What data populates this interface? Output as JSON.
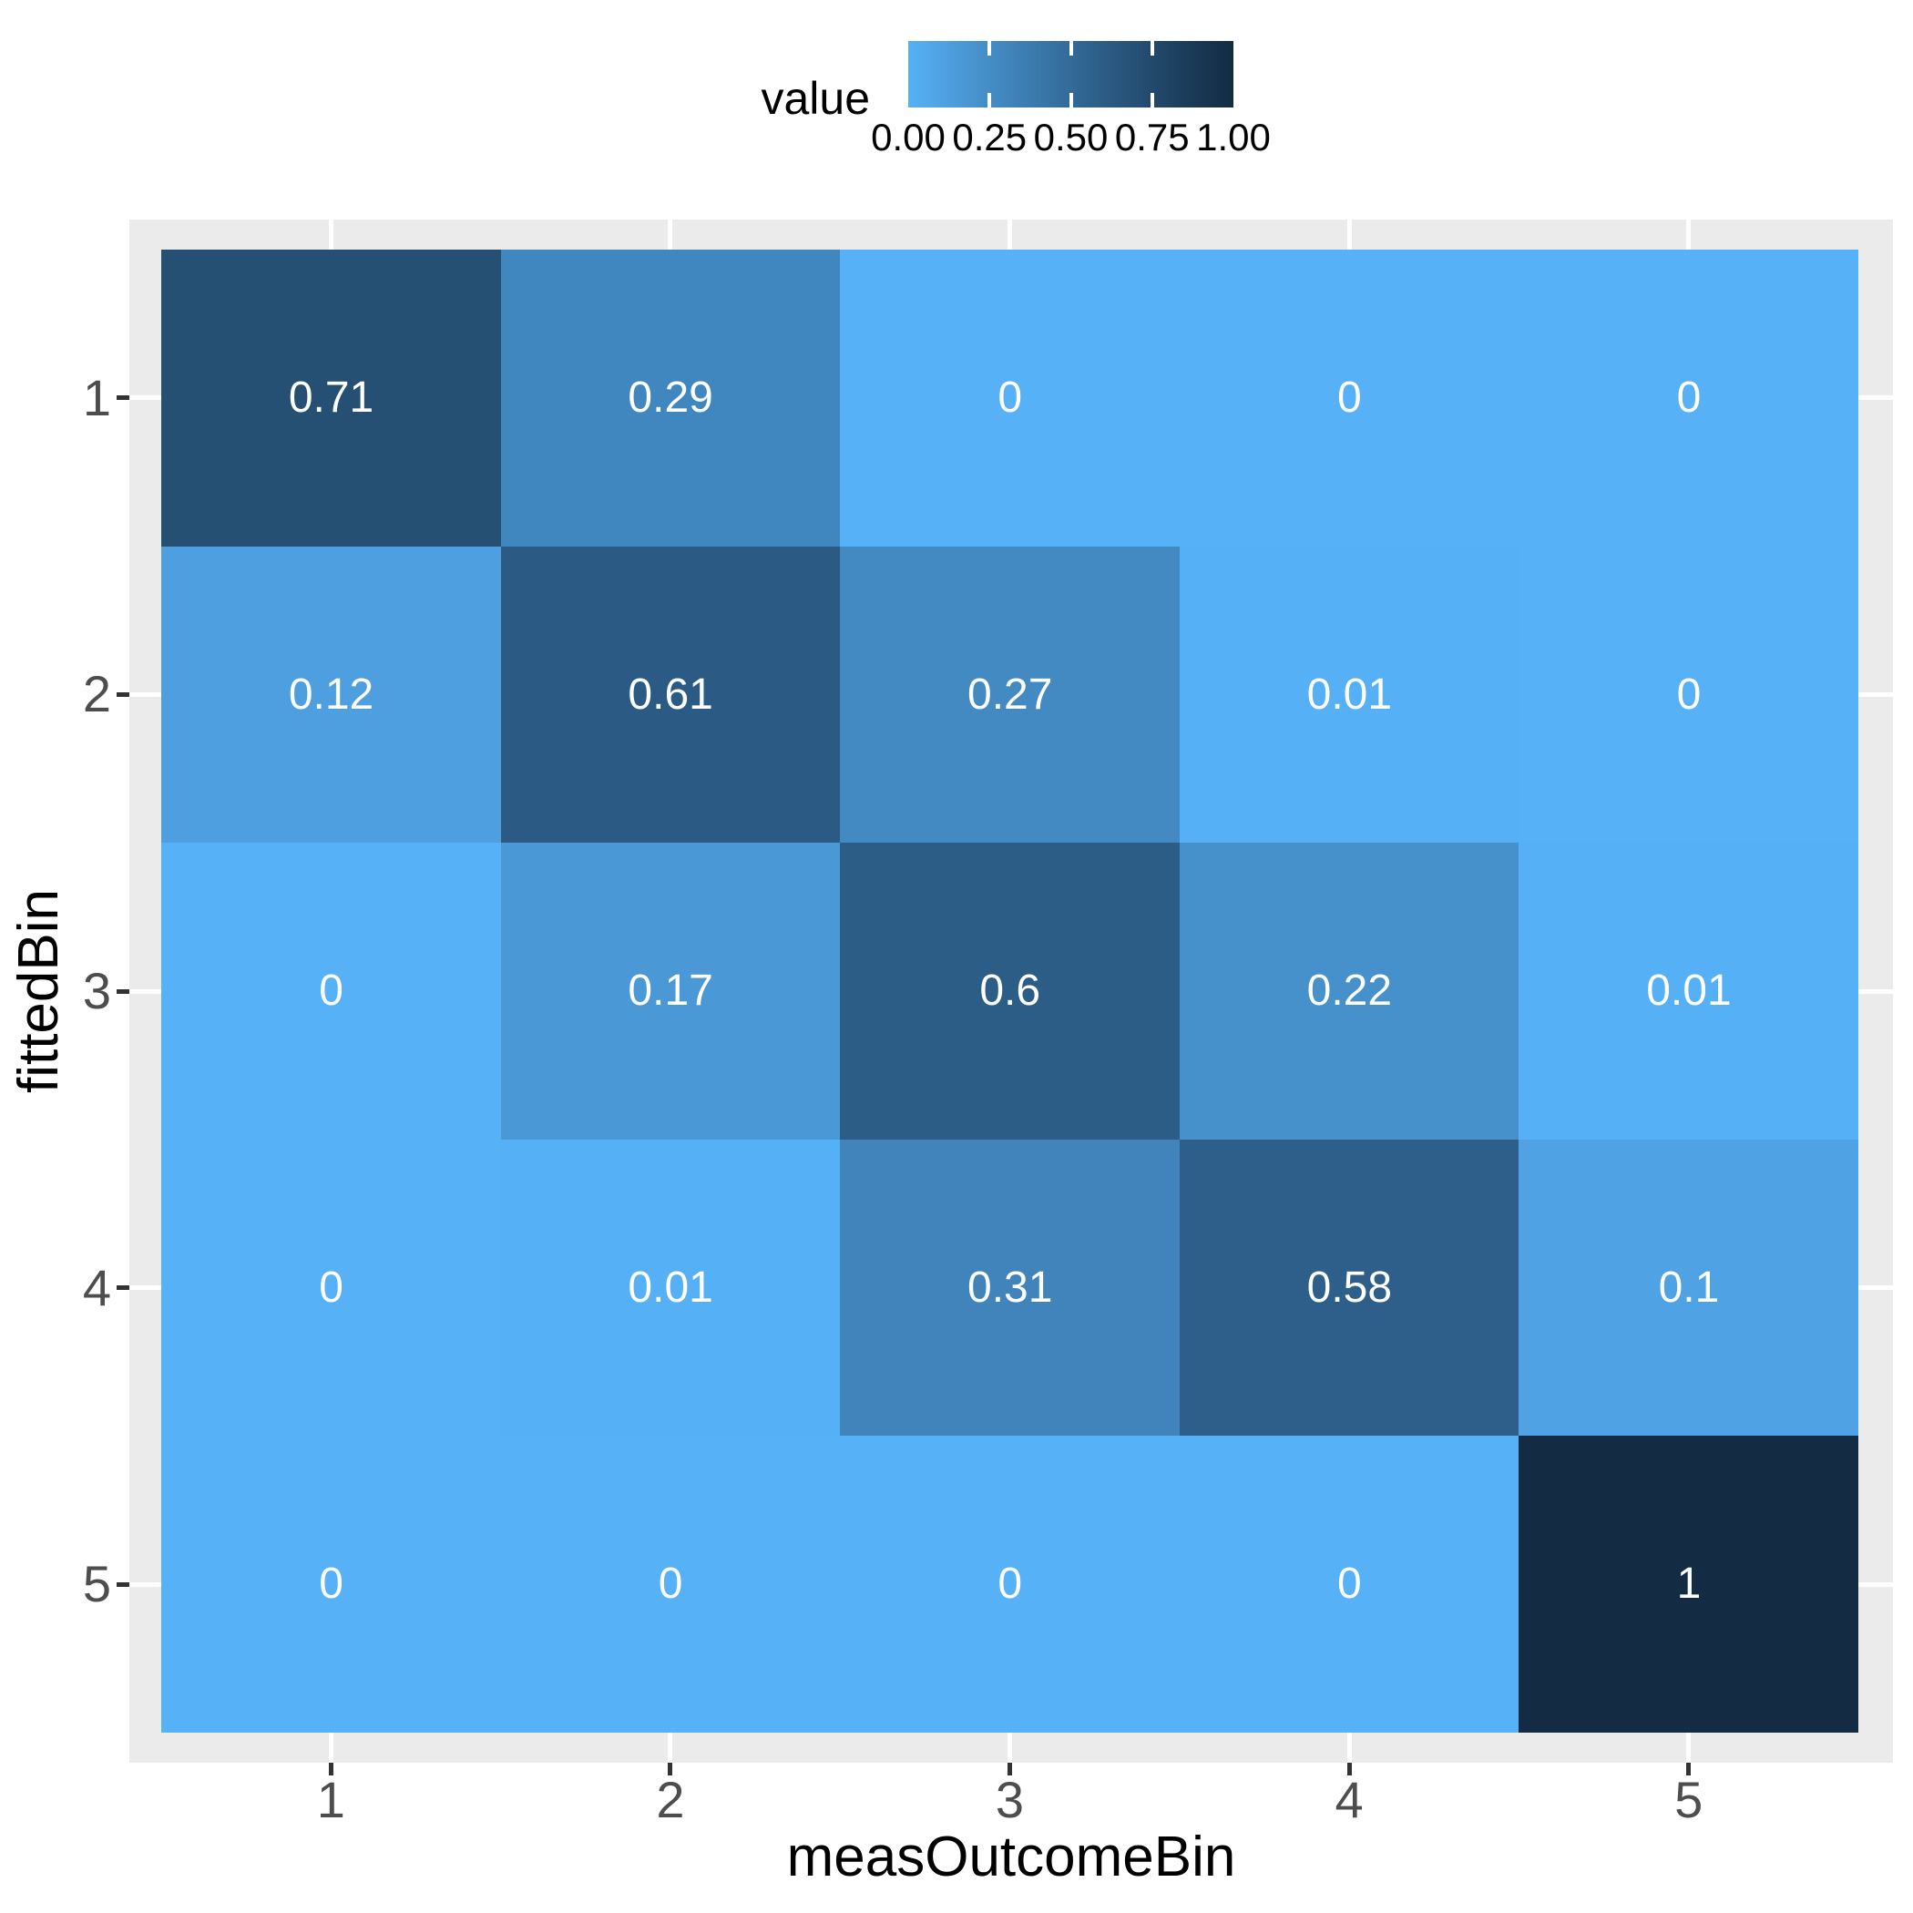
{
  "chart_data": {
    "type": "heatmap",
    "title": "",
    "xlabel": "measOutcomeBin",
    "ylabel": "fittedBin",
    "x_categories": [
      "1",
      "2",
      "3",
      "4",
      "5"
    ],
    "y_categories": [
      "1",
      "2",
      "3",
      "4",
      "5"
    ],
    "matrix": [
      [
        0.71,
        0.29,
        0,
        0,
        0
      ],
      [
        0.12,
        0.61,
        0.27,
        0.01,
        0
      ],
      [
        0,
        0.17,
        0.6,
        0.22,
        0.01
      ],
      [
        0,
        0.01,
        0.31,
        0.58,
        0.1
      ],
      [
        0,
        0,
        0,
        0,
        1
      ]
    ],
    "cell_text_color": "#FFFFFF",
    "color_scale": {
      "low_color": "#56B1F7",
      "high_color": "#132B43",
      "domain": [
        0,
        1
      ],
      "interpolation": "lab"
    },
    "legend": {
      "title": "value",
      "tick_labels": [
        "0.00",
        "0.25",
        "0.50",
        "0.75",
        "1.00"
      ],
      "tick_values": [
        0,
        0.25,
        0.5,
        0.75,
        1
      ],
      "notch_values": [
        0.25,
        0.5,
        0.75
      ]
    },
    "grid": true,
    "legend_position": "top"
  },
  "theme": {
    "panel_background": "#EBEBEB",
    "grid_color": "#FFFFFF",
    "tick_mark_color": "#333333",
    "axis_text_color": "#4D4D4D",
    "axis_title_color": "#000000",
    "plot_background": "#FFFFFF"
  }
}
